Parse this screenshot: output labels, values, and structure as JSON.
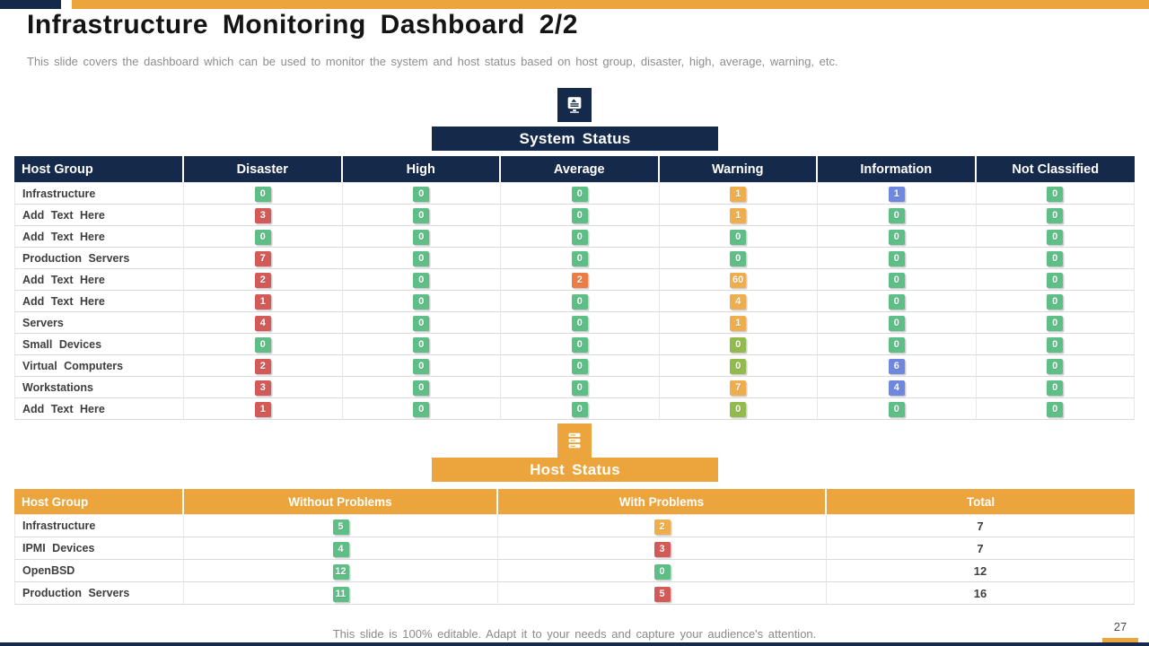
{
  "accent": {
    "navy": "#15294A",
    "orange": "#EBA53C"
  },
  "header": {
    "title": "Infrastructure Monitoring Dashboard 2/2",
    "subtitle": "This slide covers the dashboard which can be used to monitor the system and host status based on host group, disaster, high, average, warning, etc."
  },
  "badge_colors": {
    "green": "#5FBE86",
    "red": "#D45A58",
    "yellow": "#EFAE4E",
    "orange": "#ED7D46",
    "blue": "#6E87DF",
    "olive": "#93BA4C"
  },
  "system_status": {
    "heading": "System Status",
    "icon": "monitor-chart-icon",
    "columns": [
      "Host Group",
      "Disaster",
      "High",
      "Average",
      "Warning",
      "Information",
      "Not Classified"
    ],
    "rows": [
      {
        "label": "Infrastructure",
        "cells": [
          {
            "value": "0",
            "color": "green"
          },
          {
            "value": "0",
            "color": "green"
          },
          {
            "value": "0",
            "color": "green"
          },
          {
            "value": "1",
            "color": "yellow"
          },
          {
            "value": "1",
            "color": "blue"
          },
          {
            "value": "0",
            "color": "green"
          }
        ]
      },
      {
        "label": "Add Text Here",
        "cells": [
          {
            "value": "3",
            "color": "red"
          },
          {
            "value": "0",
            "color": "green"
          },
          {
            "value": "0",
            "color": "green"
          },
          {
            "value": "1",
            "color": "yellow"
          },
          {
            "value": "0",
            "color": "green"
          },
          {
            "value": "0",
            "color": "green"
          }
        ]
      },
      {
        "label": "Add Text Here",
        "cells": [
          {
            "value": "0",
            "color": "green"
          },
          {
            "value": "0",
            "color": "green"
          },
          {
            "value": "0",
            "color": "green"
          },
          {
            "value": "0",
            "color": "green"
          },
          {
            "value": "0",
            "color": "green"
          },
          {
            "value": "0",
            "color": "green"
          }
        ]
      },
      {
        "label": "Production Servers",
        "cells": [
          {
            "value": "7",
            "color": "red"
          },
          {
            "value": "0",
            "color": "green"
          },
          {
            "value": "0",
            "color": "green"
          },
          {
            "value": "0",
            "color": "green"
          },
          {
            "value": "0",
            "color": "green"
          },
          {
            "value": "0",
            "color": "green"
          }
        ]
      },
      {
        "label": "Add Text Here",
        "cells": [
          {
            "value": "2",
            "color": "red"
          },
          {
            "value": "0",
            "color": "green"
          },
          {
            "value": "2",
            "color": "orange"
          },
          {
            "value": "60",
            "color": "yellow"
          },
          {
            "value": "0",
            "color": "green"
          },
          {
            "value": "0",
            "color": "green"
          }
        ]
      },
      {
        "label": "Add Text Here",
        "cells": [
          {
            "value": "1",
            "color": "red"
          },
          {
            "value": "0",
            "color": "green"
          },
          {
            "value": "0",
            "color": "green"
          },
          {
            "value": "4",
            "color": "yellow"
          },
          {
            "value": "0",
            "color": "green"
          },
          {
            "value": "0",
            "color": "green"
          }
        ]
      },
      {
        "label": "Servers",
        "cells": [
          {
            "value": "4",
            "color": "red"
          },
          {
            "value": "0",
            "color": "green"
          },
          {
            "value": "0",
            "color": "green"
          },
          {
            "value": "1",
            "color": "yellow"
          },
          {
            "value": "0",
            "color": "green"
          },
          {
            "value": "0",
            "color": "green"
          }
        ]
      },
      {
        "label": "Small Devices",
        "cells": [
          {
            "value": "0",
            "color": "green"
          },
          {
            "value": "0",
            "color": "green"
          },
          {
            "value": "0",
            "color": "green"
          },
          {
            "value": "0",
            "color": "olive"
          },
          {
            "value": "0",
            "color": "green"
          },
          {
            "value": "0",
            "color": "green"
          }
        ]
      },
      {
        "label": "Virtual Computers",
        "cells": [
          {
            "value": "2",
            "color": "red"
          },
          {
            "value": "0",
            "color": "green"
          },
          {
            "value": "0",
            "color": "green"
          },
          {
            "value": "0",
            "color": "olive"
          },
          {
            "value": "6",
            "color": "blue"
          },
          {
            "value": "0",
            "color": "green"
          }
        ]
      },
      {
        "label": "Workstations",
        "cells": [
          {
            "value": "3",
            "color": "red"
          },
          {
            "value": "0",
            "color": "green"
          },
          {
            "value": "0",
            "color": "green"
          },
          {
            "value": "7",
            "color": "yellow"
          },
          {
            "value": "4",
            "color": "blue"
          },
          {
            "value": "0",
            "color": "green"
          }
        ]
      },
      {
        "label": "Add Text Here",
        "cells": [
          {
            "value": "1",
            "color": "red"
          },
          {
            "value": "0",
            "color": "green"
          },
          {
            "value": "0",
            "color": "green"
          },
          {
            "value": "0",
            "color": "olive"
          },
          {
            "value": "0",
            "color": "green"
          },
          {
            "value": "0",
            "color": "green"
          }
        ]
      }
    ]
  },
  "host_status": {
    "heading": "Host Status",
    "icon": "server-icon",
    "columns": [
      "Host Group",
      "Without Problems",
      "With Problems",
      "Total"
    ],
    "rows": [
      {
        "label": "Infrastructure",
        "cells": [
          {
            "value": "5",
            "color": "green"
          },
          {
            "value": "2",
            "color": "yellow"
          },
          {
            "value": "7",
            "color": "plain"
          }
        ]
      },
      {
        "label": "IPMI Devices",
        "cells": [
          {
            "value": "4",
            "color": "green"
          },
          {
            "value": "3",
            "color": "red"
          },
          {
            "value": "7",
            "color": "plain"
          }
        ]
      },
      {
        "label": "OpenBSD",
        "cells": [
          {
            "value": "12",
            "color": "green"
          },
          {
            "value": "0",
            "color": "green"
          },
          {
            "value": "12",
            "color": "plain"
          }
        ]
      },
      {
        "label": "Production Servers",
        "cells": [
          {
            "value": "11",
            "color": "green"
          },
          {
            "value": "5",
            "color": "red"
          },
          {
            "value": "16",
            "color": "plain"
          }
        ]
      }
    ]
  },
  "footer": {
    "note": "This slide is 100% editable. Adapt it to your needs and capture your audience's attention.",
    "page_number": "27"
  }
}
